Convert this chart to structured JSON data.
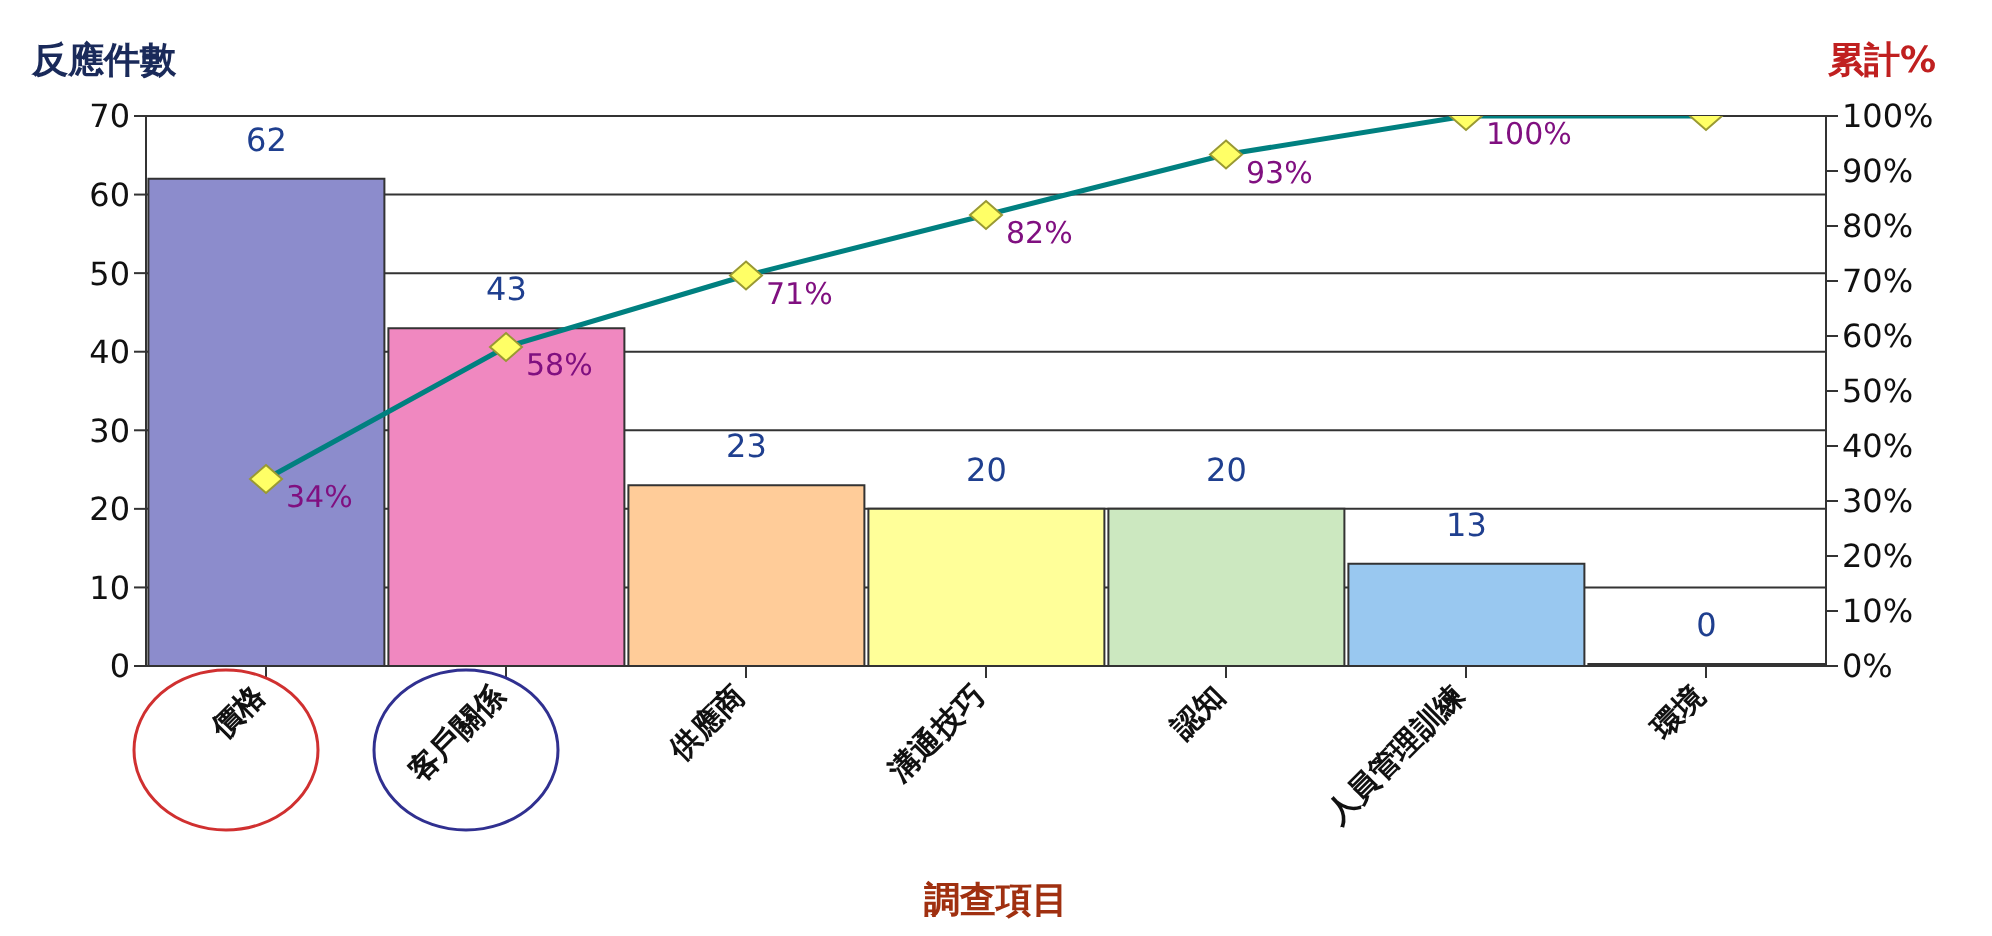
{
  "chart_data": {
    "type": "bar",
    "xlabel": "調查項目",
    "ylabel": "反應件數",
    "y2label": "累計%",
    "categories": [
      "價格",
      "客戶關係",
      "供應商",
      "溝通技巧",
      "認知",
      "人員管理訓練",
      "環境"
    ],
    "series": [
      {
        "colors": [
          "#8c8ccc",
          "#f088c0",
          "#ffcc99",
          "#ffff99",
          "#cce8c0",
          "#99c8f0",
          "#ffffff"
        ],
        "values": [
          62,
          43,
          23,
          20,
          20,
          13,
          0
        ]
      },
      {
        "type": "line",
        "axis": "y2",
        "color": "#008080",
        "marker": "diamond",
        "values": [
          34,
          58,
          71,
          82,
          93,
          100,
          100
        ],
        "value_labels": [
          "34%",
          "58%",
          "71%",
          "82%",
          "93%",
          "100%",
          null
        ]
      }
    ],
    "data_labels": true,
    "ylim": [
      0,
      70
    ],
    "yticks": [
      0,
      10,
      20,
      30,
      40,
      50,
      60,
      70
    ],
    "y2lim": [
      0,
      100
    ],
    "y2ticks": [
      {
        "value": 0,
        "label": "0%"
      },
      {
        "value": 10,
        "label": "10%"
      },
      {
        "value": 20,
        "label": "20%"
      },
      {
        "value": 30,
        "label": "30%"
      },
      {
        "value": 40,
        "label": "40%"
      },
      {
        "value": 50,
        "label": "50%"
      },
      {
        "value": 60,
        "label": "60%"
      },
      {
        "value": 70,
        "label": "70%"
      },
      {
        "value": 80,
        "label": "80%"
      },
      {
        "value": 90,
        "label": "90%"
      },
      {
        "value": 100,
        "label": "100%"
      }
    ],
    "grid": "y",
    "legend": false
  }
}
